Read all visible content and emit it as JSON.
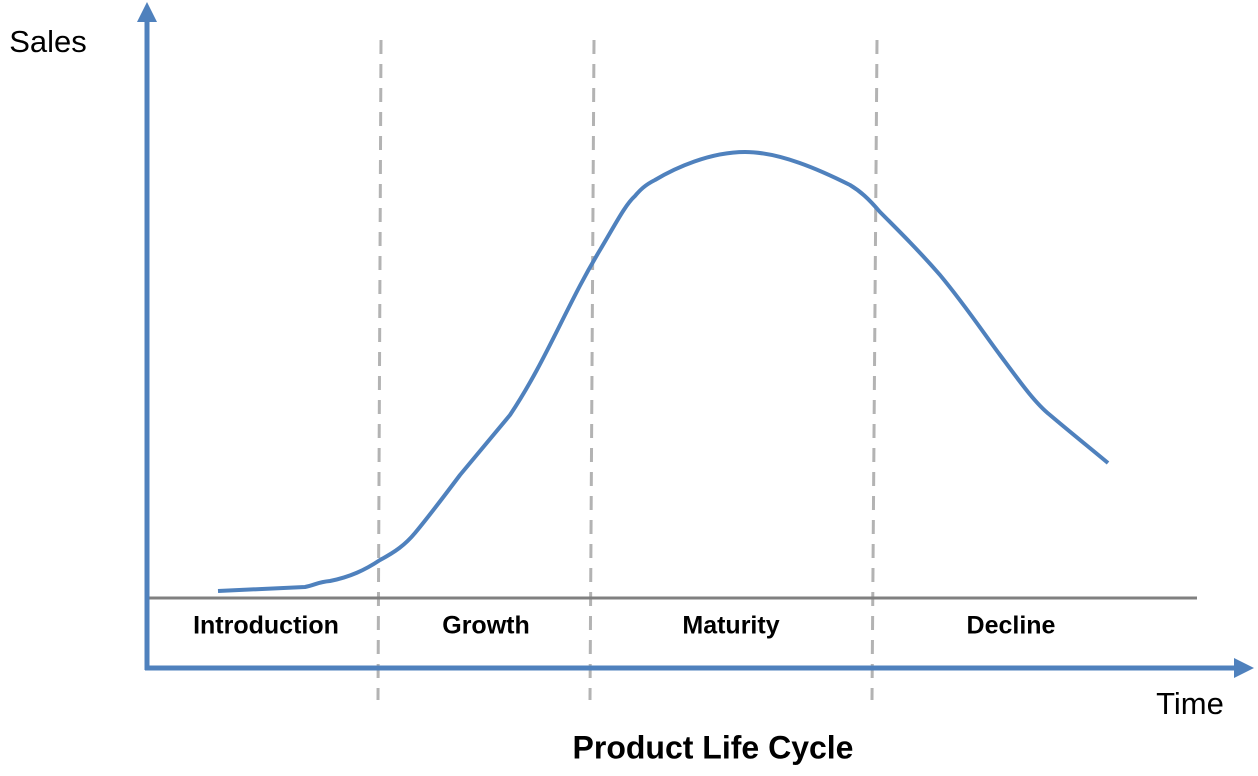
{
  "axes": {
    "y_label": "Sales",
    "x_label": "Time"
  },
  "stages": [
    {
      "label": "Introduction"
    },
    {
      "label": "Growth"
    },
    {
      "label": "Maturity"
    },
    {
      "label": "Decline"
    }
  ],
  "title": "Product Life Cycle"
}
